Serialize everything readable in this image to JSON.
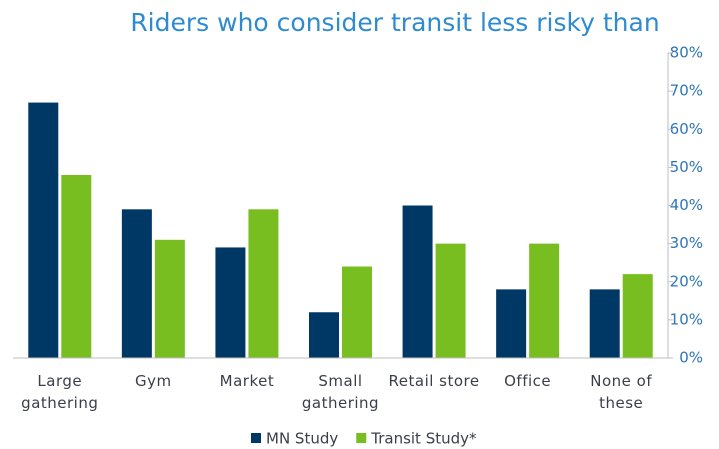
{
  "chart_data": {
    "type": "bar",
    "title": "Riders who consider transit less risky than",
    "categories": [
      "Large gathering",
      "Gym",
      "Market",
      "Small gathering",
      "Retail store",
      "Office",
      "None of these"
    ],
    "series": [
      {
        "name": "MN Study",
        "color": "#003865",
        "values": [
          67,
          39,
          29,
          12,
          40,
          18,
          18
        ]
      },
      {
        "name": "Transit Study*",
        "color": "#78be20",
        "values": [
          48,
          31,
          39,
          24,
          30,
          30,
          22
        ]
      }
    ],
    "ylim": [
      0,
      80
    ],
    "yticks": [
      {
        "value": 0,
        "label": "0%"
      },
      {
        "value": 10,
        "label": "10%"
      },
      {
        "value": 20,
        "label": "20%"
      },
      {
        "value": 30,
        "label": "30%"
      },
      {
        "value": 40,
        "label": "40%"
      },
      {
        "value": 50,
        "label": "50%"
      },
      {
        "value": 60,
        "label": "60%"
      },
      {
        "value": 70,
        "label": "70%"
      },
      {
        "value": 80,
        "label": "80%"
      }
    ],
    "y_axis_side": "right",
    "legend": "bottom",
    "grid": false
  }
}
